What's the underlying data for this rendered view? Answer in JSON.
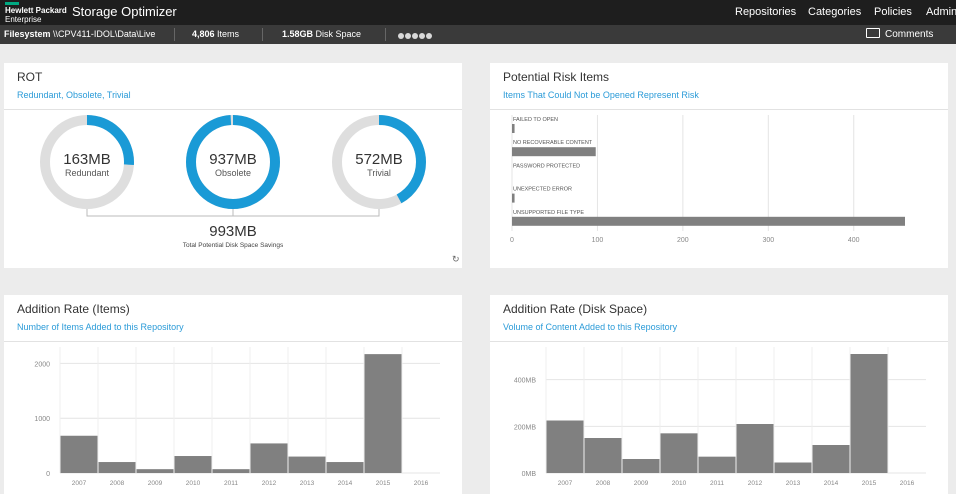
{
  "header": {
    "logo_line1": "Hewlett Packard",
    "logo_line2": "Enterprise",
    "app_title": "Storage Optimizer",
    "nav": [
      "Repositories",
      "Categories",
      "Policies",
      "Admin"
    ]
  },
  "subbar": {
    "repo_label": "Filesystem",
    "repo_path": "\\\\CPV411-IDOL\\Data\\Live",
    "items_count": "4,806",
    "items_label": "Items",
    "disk_value": "1.58GB",
    "disk_label": "Disk Space",
    "comments": "Comments"
  },
  "colors": {
    "accent": "#1a9ad6",
    "ring_bg": "#dedede",
    "bar": "#808080",
    "link": "#2b9bd8"
  },
  "icons": [
    "comment-icon",
    "refresh-icon"
  ],
  "rot": {
    "title": "ROT",
    "subtitle": "Redundant, Obsolete, Trivial",
    "items": [
      {
        "value": "163MB",
        "label": "Redundant",
        "fraction": 0.26
      },
      {
        "value": "937MB",
        "label": "Obsolete",
        "fraction": 0.99
      },
      {
        "value": "572MB",
        "label": "Trivial",
        "fraction": 0.42
      }
    ],
    "total_value": "993MB",
    "total_label": "Total Potential Disk Space Savings"
  },
  "risk": {
    "title": "Potential Risk Items",
    "subtitle": "Items That Could Not be Opened Represent Risk"
  },
  "items_rate": {
    "title": "Addition Rate (Items)",
    "subtitle": "Number of Items Added to this Repository"
  },
  "disk_rate": {
    "title": "Addition Rate (Disk Space)",
    "subtitle": "Volume of Content Added to this Repository"
  },
  "chart_data": [
    {
      "type": "bar",
      "orientation": "horizontal",
      "categories": [
        "FAILED TO OPEN",
        "NO RECOVERABLE CONTENT",
        "PASSWORD PROTECTED",
        "UNEXPECTED ERROR",
        "UNSUPPORTED FILE TYPE"
      ],
      "values": [
        3,
        98,
        0,
        3,
        460
      ],
      "xlim": [
        0,
        460
      ],
      "xticks": [
        0,
        100,
        200,
        300,
        400
      ],
      "grid": true
    },
    {
      "type": "bar",
      "categories": [
        "2007",
        "2008",
        "2009",
        "2010",
        "2011",
        "2012",
        "2013",
        "2014",
        "2015",
        "2016"
      ],
      "values": [
        680,
        200,
        70,
        310,
        70,
        540,
        300,
        200,
        2170,
        0
      ],
      "ylim": [
        0,
        2300
      ],
      "yticks": [
        0,
        1000,
        2000
      ],
      "grid": true
    },
    {
      "type": "bar",
      "categories": [
        "2007",
        "2008",
        "2009",
        "2010",
        "2011",
        "2012",
        "2013",
        "2014",
        "2015",
        "2016"
      ],
      "values": [
        225,
        150,
        60,
        170,
        70,
        210,
        45,
        120,
        510,
        0
      ],
      "ylim": [
        0,
        540
      ],
      "yticks": [
        0,
        200,
        400
      ],
      "ytick_labels": [
        "0MB",
        "200MB",
        "400MB"
      ],
      "grid": true
    }
  ]
}
